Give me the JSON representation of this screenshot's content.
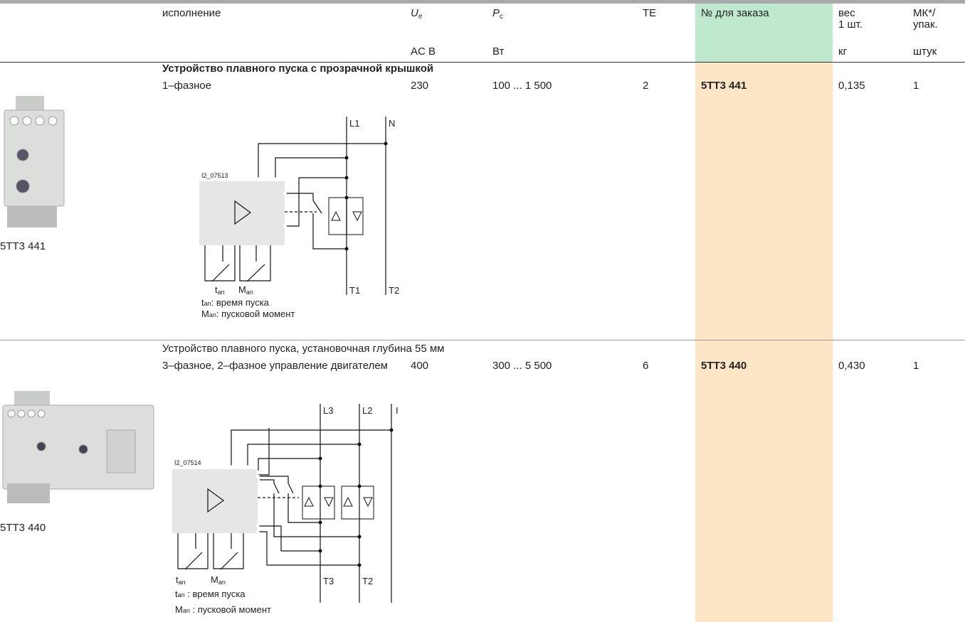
{
  "header": {
    "columns": [
      {
        "text": "исполнение"
      },
      {
        "base": "U",
        "sub": "e"
      },
      {
        "base": "P",
        "sub": "c"
      },
      {
        "text": "TE"
      },
      {
        "text": "№ для заказа"
      },
      {
        "line1": "вес",
        "line2": "1 шт."
      },
      {
        "line1": "МК*/",
        "line2": "упак."
      }
    ],
    "units": [
      "AC B",
      "Вт",
      "кг",
      "штук"
    ]
  },
  "sections": [
    {
      "title": "Устройство плавного пуска с прозрачной крышкой",
      "image_caption": "5TT3 441",
      "row": {
        "design": "1–фазное",
        "ue": "230",
        "pc": "100 ... 1 500",
        "te": "2",
        "order": "5TT3 441",
        "weight": "0,135",
        "pack": "1"
      },
      "diagram": {
        "id": "I2_07513",
        "lines": [
          "L1",
          "N"
        ],
        "outputs": [
          "T1",
          "T2"
        ],
        "legend": [
          {
            "base": "t",
            "sub": "an",
            "text": ": время пуска"
          },
          {
            "base": "M",
            "sub": "an",
            "text": ": пусковой момент"
          }
        ]
      }
    },
    {
      "title": "Устройство плавного пуска, установочная глубина 55 мм",
      "image_caption": "5TT3 440",
      "row": {
        "design": "3–фазное, 2–фазное управление двигателем",
        "ue": "400",
        "pc": "300 ... 5 500",
        "te": "6",
        "order": "5TT3 440",
        "weight": "0,430",
        "pack": "1"
      },
      "diagram": {
        "id": "I2_07514",
        "lines": [
          "L3",
          "L2",
          "I"
        ],
        "outputs": [
          "T3",
          "T2"
        ],
        "legend": [
          {
            "base": "t",
            "sub": "an",
            "text": " : время пуска"
          },
          {
            "base": "M",
            "sub": "an",
            "text": " : пусковой момент"
          }
        ]
      }
    }
  ]
}
